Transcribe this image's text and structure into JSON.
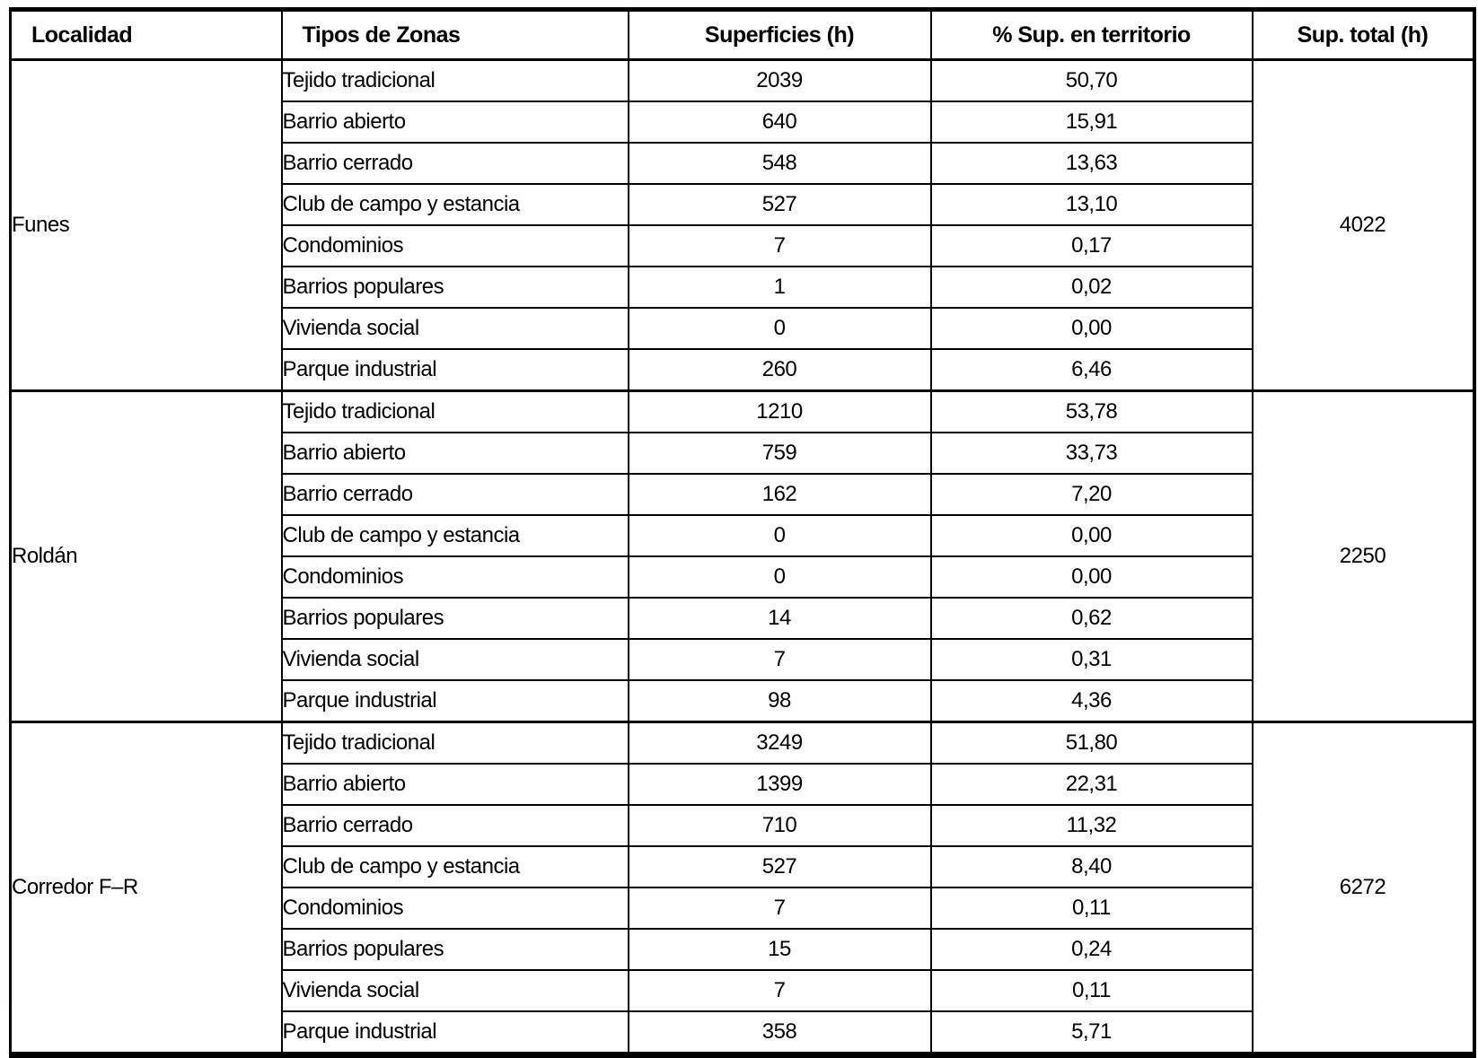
{
  "table": {
    "columns": [
      {
        "key": "localidad",
        "label": "Localidad"
      },
      {
        "key": "tipo",
        "label": "Tipos de Zonas"
      },
      {
        "key": "superficie",
        "label": "Superficies (h)"
      },
      {
        "key": "pct",
        "label": "% Sup. en territorio"
      },
      {
        "key": "total",
        "label": "Sup. total (h)"
      }
    ],
    "groups": [
      {
        "localidad": "Funes",
        "sup_total": "4022",
        "rows": [
          {
            "tipo": "Tejido tradicional",
            "superficie": "2039",
            "pct": "50,70"
          },
          {
            "tipo": "Barrio abierto",
            "superficie": "640",
            "pct": "15,91"
          },
          {
            "tipo": "Barrio cerrado",
            "superficie": "548",
            "pct": "13,63"
          },
          {
            "tipo": "Club de campo y estancia",
            "superficie": "527",
            "pct": "13,10"
          },
          {
            "tipo": "Condominios",
            "superficie": "7",
            "pct": "0,17"
          },
          {
            "tipo": "Barrios populares",
            "superficie": "1",
            "pct": "0,02"
          },
          {
            "tipo": "Vivienda social",
            "superficie": "0",
            "pct": "0,00"
          },
          {
            "tipo": "Parque industrial",
            "superficie": "260",
            "pct": "6,46"
          }
        ]
      },
      {
        "localidad": "Roldán",
        "sup_total": "2250",
        "rows": [
          {
            "tipo": "Tejido tradicional",
            "superficie": "1210",
            "pct": "53,78"
          },
          {
            "tipo": "Barrio abierto",
            "superficie": "759",
            "pct": "33,73"
          },
          {
            "tipo": "Barrio cerrado",
            "superficie": "162",
            "pct": "7,20"
          },
          {
            "tipo": "Club de campo y estancia",
            "superficie": "0",
            "pct": "0,00"
          },
          {
            "tipo": "Condominios",
            "superficie": "0",
            "pct": "0,00"
          },
          {
            "tipo": "Barrios populares",
            "superficie": "14",
            "pct": "0,62"
          },
          {
            "tipo": "Vivienda social",
            "superficie": "7",
            "pct": "0,31"
          },
          {
            "tipo": "Parque industrial",
            "superficie": "98",
            "pct": "4,36"
          }
        ]
      },
      {
        "localidad": "Corredor F–R",
        "sup_total": "6272",
        "rows": [
          {
            "tipo": "Tejido tradicional",
            "superficie": "3249",
            "pct": "51,80"
          },
          {
            "tipo": "Barrio abierto",
            "superficie": "1399",
            "pct": "22,31"
          },
          {
            "tipo": "Barrio cerrado",
            "superficie": "710",
            "pct": "11,32"
          },
          {
            "tipo": "Club de campo y estancia",
            "superficie": "527",
            "pct": "8,40"
          },
          {
            "tipo": "Condominios",
            "superficie": "7",
            "pct": "0,11"
          },
          {
            "tipo": "Barrios populares",
            "superficie": "15",
            "pct": "0,24"
          },
          {
            "tipo": "Vivienda social",
            "superficie": "7",
            "pct": "0,11"
          },
          {
            "tipo": "Parque industrial",
            "superficie": "358",
            "pct": "5,71"
          }
        ]
      }
    ]
  }
}
